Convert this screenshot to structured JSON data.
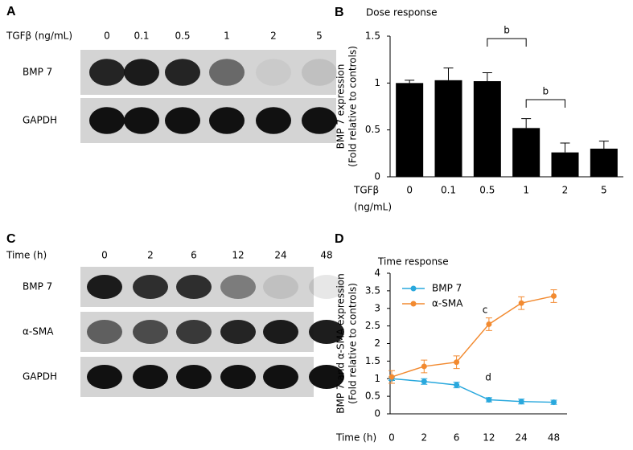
{
  "panel_labels": [
    "A",
    "B",
    "C",
    "D"
  ],
  "blots": [
    {
      "header": "TGFβ (ng/mL)",
      "lanes": [
        "0",
        "0.1",
        "0.5",
        "1",
        "2",
        "5"
      ],
      "rows": [
        "BMP 7",
        "GAPDH"
      ]
    },
    {
      "header": "Time (h)",
      "lanes": [
        "0",
        "2",
        "6",
        "12",
        "24",
        "48"
      ],
      "rows": [
        "BMP 7",
        "α-SMA",
        "GAPDH"
      ]
    }
  ],
  "chart_data": [
    {
      "type": "bar",
      "title": "Dose response",
      "ylabel": [
        "BMP 7 expression",
        "(Fold relative to controls)"
      ],
      "xlabel": [
        "TGFβ",
        "(ng/mL)"
      ],
      "categories": [
        "0",
        "0.1",
        "0.5",
        "1",
        "2",
        "5"
      ],
      "values": [
        1.0,
        1.03,
        1.02,
        0.52,
        0.26,
        0.3
      ],
      "errors": [
        0.03,
        0.13,
        0.09,
        0.1,
        0.1,
        0.08
      ],
      "color": "#000000",
      "ylim": [
        0,
        1.5
      ],
      "yticks": [
        0,
        0.5,
        1,
        1.5
      ],
      "annotations": [
        "b",
        "b"
      ]
    },
    {
      "type": "line",
      "title": "Time response",
      "ylabel": [
        "BMP 7 and α-SMA expression",
        "(Fold relative to controls)"
      ],
      "xlabel": "Time (h)",
      "categories": [
        "0",
        "2",
        "6",
        "12",
        "24",
        "48"
      ],
      "series": [
        {
          "name": "BMP 7",
          "color": "#29a8dd",
          "values": [
            1.0,
            0.92,
            0.82,
            0.4,
            0.35,
            0.33
          ],
          "errors": [
            0.05,
            0.08,
            0.08,
            0.06,
            0.07,
            0.06
          ]
        },
        {
          "name": "α-SMA",
          "color": "#f28a30",
          "values": [
            1.05,
            1.35,
            1.47,
            2.55,
            3.15,
            3.35
          ],
          "errors": [
            0.18,
            0.18,
            0.18,
            0.18,
            0.18,
            0.18
          ]
        }
      ],
      "ylim": [
        0,
        4
      ],
      "yticks": [
        0,
        0.5,
        1,
        1.5,
        2,
        2.5,
        3,
        3.5,
        4
      ],
      "annotations": [
        "c",
        "d"
      ],
      "legend": "upper-left"
    }
  ]
}
